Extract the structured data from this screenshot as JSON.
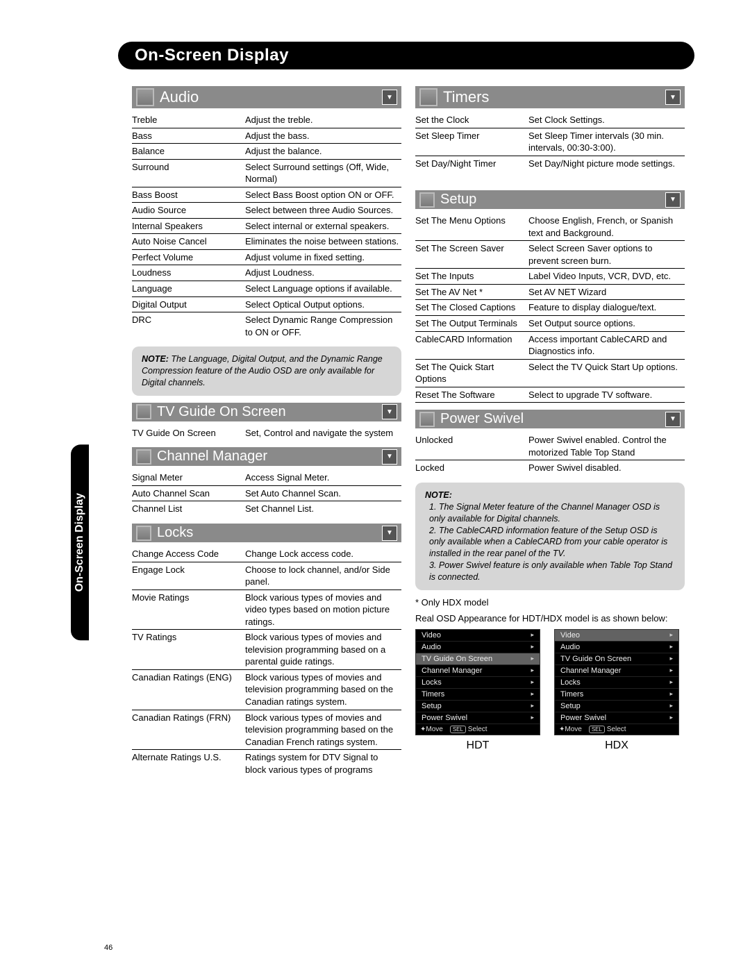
{
  "page_number": "46",
  "main_title": "On-Screen Display",
  "side_tab": "On-Screen Display",
  "sections": {
    "audio": {
      "title": "Audio",
      "rows": [
        [
          "Treble",
          "Adjust the treble."
        ],
        [
          "Bass",
          "Adjust the bass."
        ],
        [
          "Balance",
          "Adjust the balance."
        ],
        [
          "Surround",
          "Select Surround settings (Off, Wide, Normal)"
        ],
        [
          "Bass Boost",
          "Select Bass Boost option ON or OFF."
        ],
        [
          "Audio Source",
          "Select between three Audio Sources."
        ],
        [
          "Internal Speakers",
          "Select internal or external speakers."
        ],
        [
          "Auto Noise Cancel",
          "Eliminates the noise between stations."
        ],
        [
          "Perfect Volume",
          "Adjust volume in fixed setting."
        ],
        [
          "Loudness",
          "Adjust Loudness."
        ],
        [
          "Language",
          "Select Language options if available."
        ],
        [
          "Digital Output",
          "Select Optical Output options."
        ],
        [
          "DRC",
          "Select Dynamic Range Compression to ON or OFF."
        ]
      ],
      "note": "The Language, Digital Output, and the Dynamic Range Compression feature of the Audio OSD are only available for Digital channels."
    },
    "tvguide": {
      "title": "TV Guide On Screen",
      "rows": [
        [
          "TV Guide On Screen",
          "Set, Control and navigate the system"
        ]
      ]
    },
    "channel": {
      "title": "Channel Manager",
      "rows": [
        [
          "Signal Meter",
          "Access Signal Meter."
        ],
        [
          "Auto Channel Scan",
          "Set Auto Channel Scan."
        ],
        [
          "Channel List",
          "Set Channel List."
        ]
      ]
    },
    "locks": {
      "title": "Locks",
      "rows": [
        [
          "Change Access Code",
          "Change Lock access code."
        ],
        [
          "Engage Lock",
          "Choose to lock channel, and/or Side panel."
        ],
        [
          "Movie Ratings",
          "Block various types of movies and video types based on motion picture ratings."
        ],
        [
          "TV Ratings",
          "Block various types of movies and television programming based on a parental guide ratings."
        ],
        [
          "Canadian Ratings (ENG)",
          "Block various types of movies and television programming based on the Canadian ratings system."
        ],
        [
          "Canadian Ratings (FRN)",
          "Block various types of movies and television programming based on the Canadian French ratings system."
        ],
        [
          "Alternate Ratings U.S.",
          "Ratings system for DTV Signal to block various types of programs"
        ]
      ]
    },
    "timers": {
      "title": "Timers",
      "rows": [
        [
          "Set the Clock",
          "Set Clock Settings."
        ],
        [
          "Set Sleep Timer",
          "Set Sleep Timer intervals (30 min. intervals, 00:30-3:00)."
        ],
        [
          "Set Day/Night Timer",
          "Set Day/Night picture mode settings."
        ]
      ]
    },
    "setup": {
      "title": "Setup",
      "rows": [
        [
          "Set The Menu Options",
          "Choose English, French, or Spanish text and Background."
        ],
        [
          "Set The Screen Saver",
          "Select Screen Saver options to prevent screen burn."
        ],
        [
          "Set The Inputs",
          "Label Video Inputs, VCR, DVD, etc."
        ],
        [
          "Set The AV Net  *",
          "Set AV NET Wizard"
        ],
        [
          "Set The Closed Captions",
          "Feature to display dialogue/text."
        ],
        [
          "Set The Output Terminals",
          "Set Output source options."
        ],
        [
          "CableCARD Information",
          "Access important CableCARD and Diagnostics info."
        ],
        [
          "Set The Quick Start Options",
          "Select the TV Quick Start Up options."
        ],
        [
          "Reset The Software",
          "Select to upgrade TV software."
        ]
      ]
    },
    "power": {
      "title": "Power Swivel",
      "rows": [
        [
          "Unlocked",
          "Power Swivel enabled.  Control the motorized Table Top Stand"
        ],
        [
          "Locked",
          "Power Swivel disabled."
        ]
      ]
    }
  },
  "right_note": {
    "label": "NOTE:",
    "items": [
      "1.  The Signal Meter feature of the Channel Manager OSD is only available for Digital channels.",
      "2. The CableCARD information feature of the Setup OSD is only available when a CableCARD from your cable operator is installed in the rear panel of the TV.",
      "3. Power Swivel feature is only available when Table Top Stand is connected."
    ]
  },
  "footnote1": "* Only HDX model",
  "footnote2": "Real OSD Appearance for HDT/HDX model is as shown below:",
  "osd": {
    "hdt": {
      "label": "HDT",
      "items": [
        "Video",
        "Audio",
        "TV Guide On Screen",
        "Channel Manager",
        "Locks",
        "Timers",
        "Setup",
        "Power Swivel"
      ],
      "selected": 2
    },
    "hdx": {
      "label": "HDX",
      "items": [
        "Video",
        "Audio",
        "TV Guide On Screen",
        "Channel Manager",
        "Locks",
        "Timers",
        "Setup",
        "Power Swivel"
      ],
      "selected": 0
    },
    "footer_move": "Move",
    "footer_sel": "SEL",
    "footer_select": "Select"
  }
}
